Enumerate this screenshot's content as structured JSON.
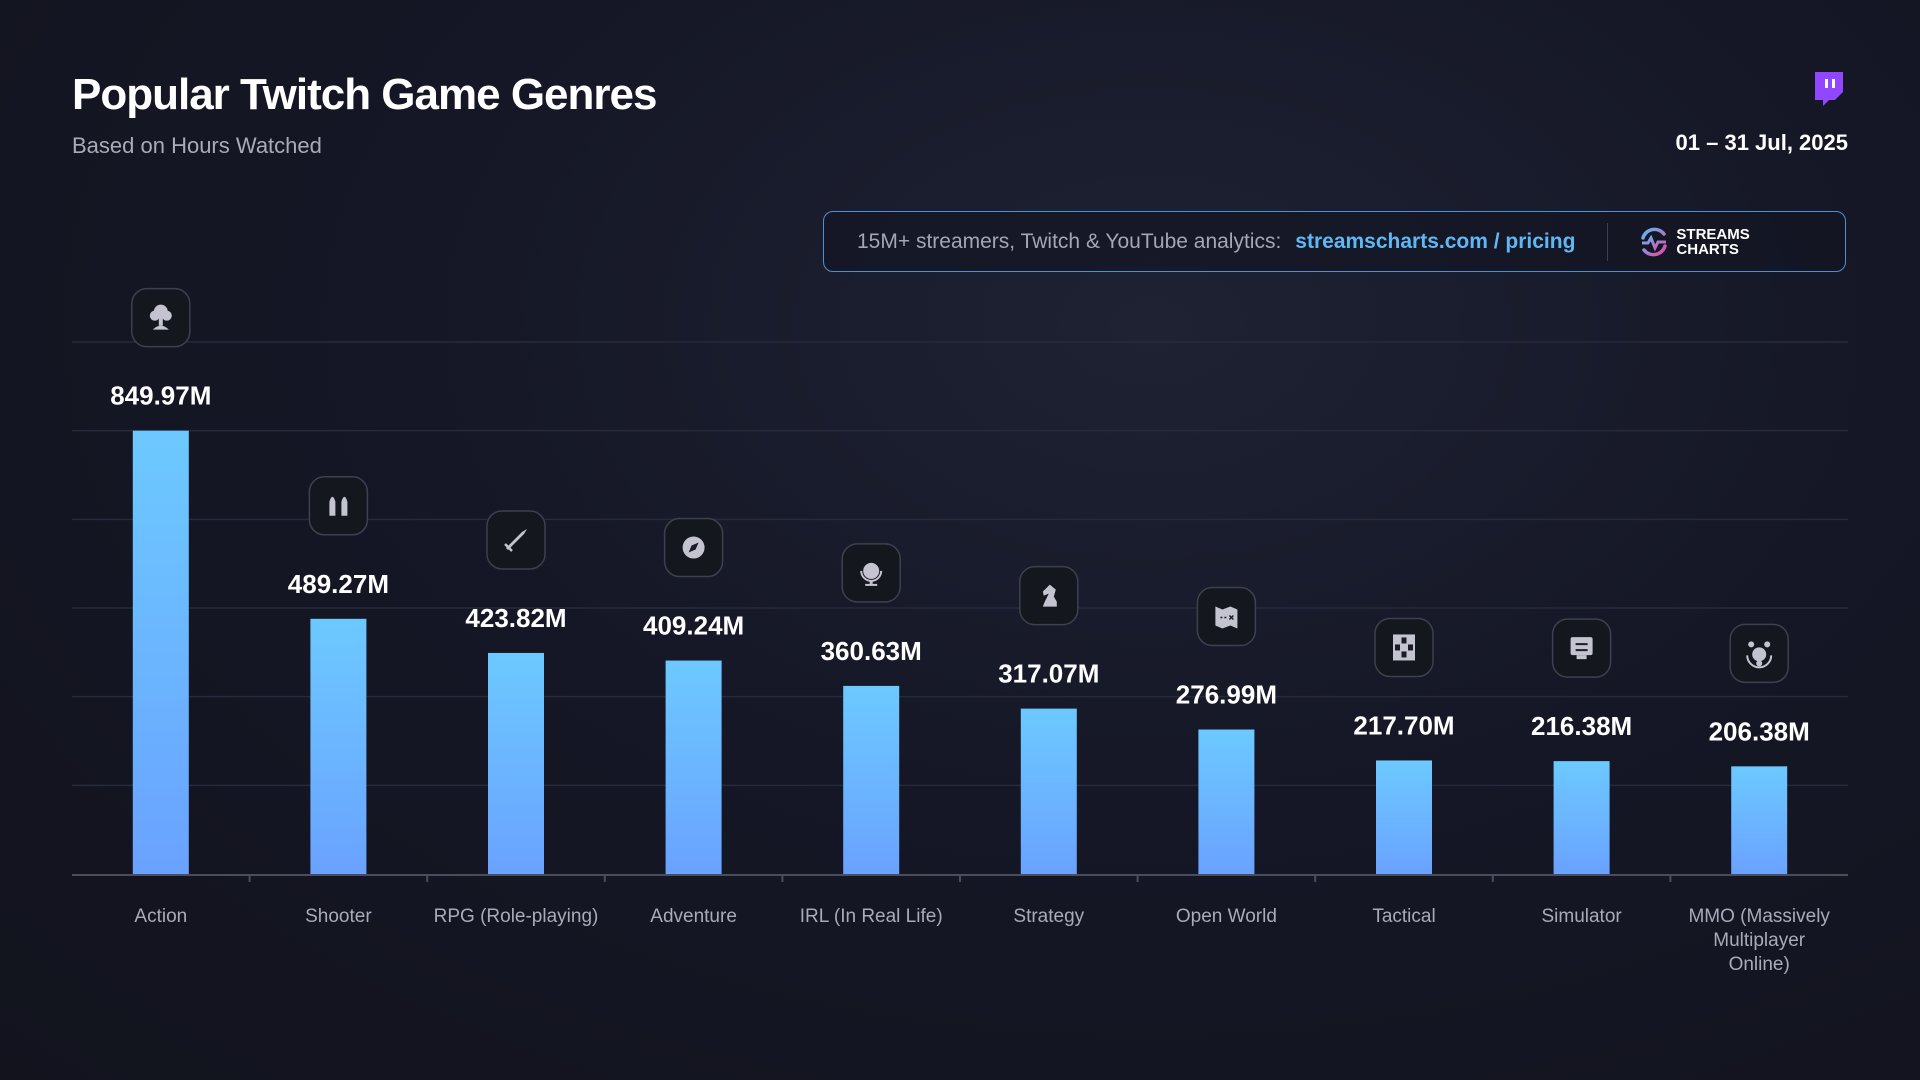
{
  "header": {
    "title": "Popular Twitch Game Genres",
    "subtitle": "Based on Hours Watched",
    "date_range": "01 – 31 Jul, 2025",
    "brand_icon": "twitch-icon"
  },
  "banner": {
    "text": "15M+ streamers, Twitch & YouTube analytics:",
    "link": "streamscharts.com / pricing",
    "logo_line1": "STREAMS",
    "logo_line2": "CHARTS"
  },
  "colors": {
    "bar_top": "#6cc9ff",
    "bar_bottom": "#6aa2ff",
    "accent": "#9146ff",
    "link": "#5fb8f4"
  },
  "chart_data": {
    "type": "bar",
    "title": "Popular Twitch Game Genres",
    "subtitle": "Based on Hours Watched",
    "xlabel": "",
    "ylabel": "Hours Watched",
    "unit": "M",
    "ylim": [
      0,
      1020
    ],
    "grid": true,
    "categories": [
      "Action",
      "Shooter",
      "RPG (Role-playing)",
      "Adventure",
      "IRL (In Real Life)",
      "Strategy",
      "Open World",
      "Tactical",
      "Simulator",
      "MMO (Massively Multiplayer Online)"
    ],
    "category_lines": [
      [
        "Action"
      ],
      [
        "Shooter"
      ],
      [
        "RPG (Role-playing)"
      ],
      [
        "Adventure"
      ],
      [
        "IRL (In Real Life)"
      ],
      [
        "Strategy"
      ],
      [
        "Open World"
      ],
      [
        "Tactical"
      ],
      [
        "Simulator"
      ],
      [
        "MMO (Massively",
        "Multiplayer",
        "Online)"
      ]
    ],
    "values": [
      849.97,
      489.27,
      423.82,
      409.24,
      360.63,
      317.07,
      276.99,
      217.7,
      216.38,
      206.38
    ],
    "labels": [
      "849.97M",
      "489.27M",
      "423.82M",
      "409.24M",
      "360.63M",
      "317.07M",
      "276.99M",
      "217.70M",
      "216.38M",
      "206.38M"
    ],
    "icons": [
      "explosion-icon",
      "bullets-icon",
      "sword-icon",
      "compass-icon",
      "globe-icon",
      "chess-knight-icon",
      "map-icon",
      "dice-icon",
      "controls-chip-icon",
      "multiplayer-globe-icon"
    ]
  }
}
